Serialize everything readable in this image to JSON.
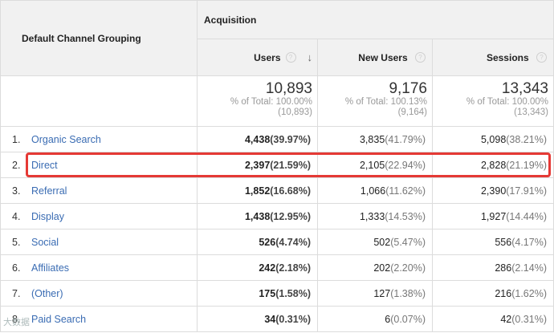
{
  "header": {
    "dimension": "Default Channel Grouping",
    "group": "Acquisition",
    "metrics": [
      {
        "label": "Users",
        "help": "?"
      },
      {
        "label": "New Users",
        "help": "?"
      },
      {
        "label": "Sessions",
        "help": "?"
      }
    ],
    "sort_icon": "↓"
  },
  "totals": [
    {
      "value": "10,893",
      "line1": "% of Total: 100.00%",
      "line2": "(10,893)"
    },
    {
      "value": "9,176",
      "line1": "% of Total: 100.13%",
      "line2": "(9,164)"
    },
    {
      "value": "13,343",
      "line1": "% of Total: 100.00%",
      "line2": "(13,343)"
    }
  ],
  "rows": [
    {
      "rank": "1.",
      "name": "Organic Search",
      "users": "4,438",
      "users_pct": "(39.97%)",
      "new_users": "3,835",
      "new_users_pct": "(41.79%)",
      "sessions": "5,098",
      "sessions_pct": "(38.21%)"
    },
    {
      "rank": "2.",
      "name": "Direct",
      "users": "2,397",
      "users_pct": "(21.59%)",
      "new_users": "2,105",
      "new_users_pct": "(22.94%)",
      "sessions": "2,828",
      "sessions_pct": "(21.19%)"
    },
    {
      "rank": "3.",
      "name": "Referral",
      "users": "1,852",
      "users_pct": "(16.68%)",
      "new_users": "1,066",
      "new_users_pct": "(11.62%)",
      "sessions": "2,390",
      "sessions_pct": "(17.91%)"
    },
    {
      "rank": "4.",
      "name": "Display",
      "users": "1,438",
      "users_pct": "(12.95%)",
      "new_users": "1,333",
      "new_users_pct": "(14.53%)",
      "sessions": "1,927",
      "sessions_pct": "(14.44%)"
    },
    {
      "rank": "5.",
      "name": "Social",
      "users": "526",
      "users_pct": "(4.74%)",
      "new_users": "502",
      "new_users_pct": "(5.47%)",
      "sessions": "556",
      "sessions_pct": "(4.17%)"
    },
    {
      "rank": "6.",
      "name": "Affiliates",
      "users": "242",
      "users_pct": "(2.18%)",
      "new_users": "202",
      "new_users_pct": "(2.20%)",
      "sessions": "286",
      "sessions_pct": "(2.14%)"
    },
    {
      "rank": "7.",
      "name": "(Other)",
      "users": "175",
      "users_pct": "(1.58%)",
      "new_users": "127",
      "new_users_pct": "(1.38%)",
      "sessions": "216",
      "sessions_pct": "(1.62%)"
    },
    {
      "rank": "8.",
      "name": "Paid Search",
      "users": "34",
      "users_pct": "(0.31%)",
      "new_users": "6",
      "new_users_pct": "(0.07%)",
      "sessions": "42",
      "sessions_pct": "(0.31%)"
    }
  ],
  "colors": {
    "link": "#3a6cb3",
    "highlight": "#e53935",
    "header_bg": "#f1f1f1"
  },
  "watermark": "大数据"
}
